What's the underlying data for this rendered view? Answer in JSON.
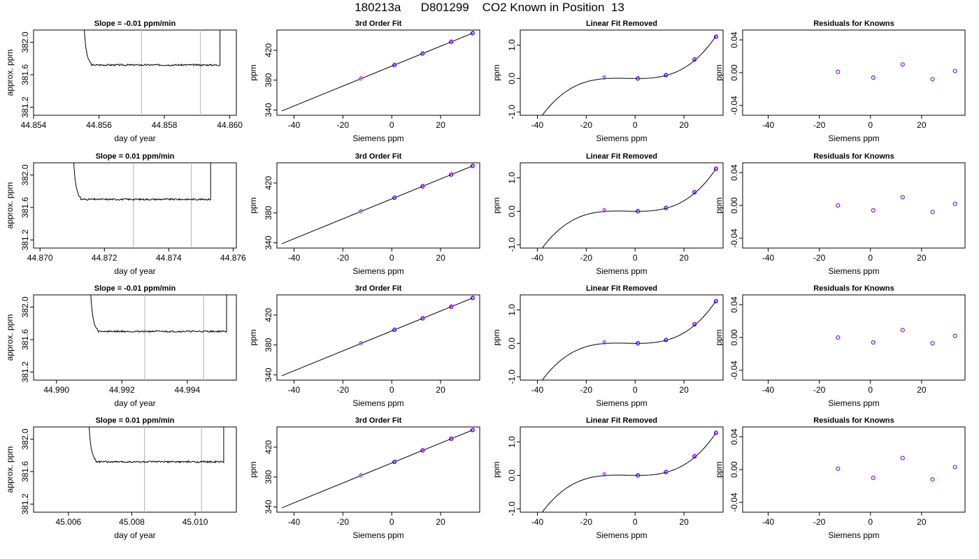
{
  "figure_title": "180213a      D801299    CO2 Known in Position  13",
  "colors": {
    "axis": "#000000",
    "trace": "#000000",
    "window_lines": "#bdbdbd",
    "point_outer": "#0000ff",
    "point_inner": "#ff00ff",
    "point_highlight": "#5aa0ff",
    "residual_point": "#8a2be2"
  },
  "chart_data": [
    {
      "type": "line",
      "row": 1,
      "panel": "time-trace",
      "title": "Slope =  -0.01  ppm/min",
      "xlabel": "day of year",
      "ylabel": "approx. ppm",
      "xlim": [
        44.854,
        44.8602
      ],
      "ylim": [
        381.1,
        382.15
      ],
      "xticks": [
        44.854,
        44.856,
        44.858,
        44.86
      ],
      "xtick_labels": [
        "44.854",
        "44.856",
        "44.858",
        "44.860"
      ],
      "yticks": [
        381.2,
        381.6,
        382.0
      ],
      "ytick_labels": [
        "381.2",
        "381.6",
        "382.0"
      ],
      "window_lines": [
        44.8573,
        44.8591
      ],
      "trace": {
        "start": 44.8555,
        "end": 44.8597,
        "plateau": 381.72,
        "noise": 0.01
      }
    },
    {
      "type": "scatter",
      "row": 1,
      "panel": "3rd-order-fit",
      "title": "3rd Order Fit",
      "xlabel": "Siemens ppm",
      "ylabel": "ppm",
      "xlim": [
        -47,
        36
      ],
      "ylim": [
        333,
        447
      ],
      "xticks": [
        -40,
        -20,
        0,
        20
      ],
      "xtick_labels": [
        "-40",
        "-20",
        "0",
        "20"
      ],
      "yticks": [
        340,
        380,
        420
      ],
      "ytick_labels": [
        "340",
        "380",
        "420"
      ],
      "fit_line": {
        "x": [
          -45,
          33
        ],
        "y": [
          338.8,
          442.7
        ]
      },
      "points": {
        "x": [
          -12.7,
          1.1,
          12.6,
          24.3,
          33.1
        ],
        "y": [
          381.8,
          400.2,
          415.5,
          431.1,
          442.8
        ]
      },
      "highlight_index": 0
    },
    {
      "type": "scatter",
      "row": 1,
      "panel": "linear-fit-removed",
      "title": "Linear Fit Removed",
      "xlabel": "Siemens ppm",
      "ylabel": "ppm",
      "xlim": [
        -47,
        36
      ],
      "ylim": [
        -1.1,
        1.45
      ],
      "xticks": [
        -40,
        -20,
        0,
        20
      ],
      "xtick_labels": [
        "-40",
        "-20",
        "0",
        "20"
      ],
      "yticks": [
        -1.0,
        0.0,
        1.0
      ],
      "ytick_labels": [
        "-1.0",
        "0.0",
        "1.0"
      ],
      "curve": {
        "x0": -45,
        "x1": 33
      },
      "points": {
        "x": [
          -12.7,
          1.1,
          12.6,
          24.3,
          33.1
        ],
        "y": [
          0.02,
          0.0,
          0.1,
          0.57,
          1.25
        ]
      },
      "highlight_index": 0
    },
    {
      "type": "scatter",
      "row": 1,
      "panel": "residuals",
      "title": "Residuals for Knowns",
      "xlabel": "Siemens ppm",
      "ylabel": "ppm",
      "xlim": [
        -50,
        37
      ],
      "ylim": [
        -0.052,
        0.052
      ],
      "xticks": [
        -40,
        -20,
        0,
        20
      ],
      "xtick_labels": [
        "-40",
        "-20",
        "0",
        "20"
      ],
      "yticks": [
        -0.04,
        0.0,
        0.04
      ],
      "ytick_labels": [
        "-0.04",
        "0.00",
        "0.04"
      ],
      "points": {
        "x": [
          -12.7,
          1.1,
          12.6,
          24.3,
          33.1
        ],
        "y": [
          0.001,
          -0.006,
          0.01,
          -0.008,
          0.002
        ]
      }
    },
    {
      "type": "line",
      "row": 2,
      "panel": "time-trace",
      "title": "Slope =  0.01  ppm/min",
      "xlabel": "day of year",
      "ylabel": "approx. ppm",
      "xlim": [
        44.8698,
        44.8761
      ],
      "ylim": [
        381.1,
        382.15
      ],
      "xticks": [
        44.87,
        44.872,
        44.874,
        44.876
      ],
      "xtick_labels": [
        "44.870",
        "44.872",
        "44.874",
        "44.876"
      ],
      "yticks": [
        381.2,
        381.6,
        382.0
      ],
      "ytick_labels": [
        "381.2",
        "381.6",
        "382.0"
      ],
      "window_lines": [
        44.8729,
        44.8747
      ],
      "trace": {
        "start": 44.871,
        "end": 44.8753,
        "plateau": 381.7,
        "noise": 0.01
      }
    },
    {
      "type": "scatter",
      "row": 2,
      "panel": "3rd-order-fit",
      "title": "3rd Order Fit",
      "xlabel": "Siemens ppm",
      "ylabel": "ppm",
      "xlim": [
        -47,
        36
      ],
      "ylim": [
        333,
        447
      ],
      "xticks": [
        -40,
        -20,
        0,
        20
      ],
      "xtick_labels": [
        "-40",
        "-20",
        "0",
        "20"
      ],
      "yticks": [
        340,
        380,
        420
      ],
      "ytick_labels": [
        "340",
        "380",
        "420"
      ],
      "fit_line": {
        "x": [
          -45,
          33
        ],
        "y": [
          338.8,
          442.7
        ]
      },
      "points": {
        "x": [
          -12.7,
          1.1,
          12.6,
          24.3,
          33.1
        ],
        "y": [
          381.8,
          400.2,
          415.5,
          431.1,
          442.8
        ]
      },
      "highlight_index": 0
    },
    {
      "type": "scatter",
      "row": 2,
      "panel": "linear-fit-removed",
      "title": "Linear Fit Removed",
      "xlabel": "Siemens ppm",
      "ylabel": "ppm",
      "xlim": [
        -47,
        36
      ],
      "ylim": [
        -1.1,
        1.45
      ],
      "xticks": [
        -40,
        -20,
        0,
        20
      ],
      "xtick_labels": [
        "-40",
        "-20",
        "0",
        "20"
      ],
      "yticks": [
        -1.0,
        0.0,
        1.0
      ],
      "ytick_labels": [
        "-1.0",
        "0.0",
        "1.0"
      ],
      "curve": {
        "x0": -45,
        "x1": 33
      },
      "points": {
        "x": [
          -12.7,
          1.1,
          12.6,
          24.3,
          33.1
        ],
        "y": [
          0.02,
          0.0,
          0.1,
          0.57,
          1.27
        ]
      },
      "highlight_index": 0
    },
    {
      "type": "scatter",
      "row": 2,
      "panel": "residuals",
      "title": "Residuals for Knowns",
      "xlabel": "Siemens ppm",
      "ylabel": "ppm",
      "xlim": [
        -50,
        37
      ],
      "ylim": [
        -0.052,
        0.052
      ],
      "xticks": [
        -40,
        -20,
        0,
        20
      ],
      "xtick_labels": [
        "-40",
        "-20",
        "0",
        "20"
      ],
      "yticks": [
        -0.04,
        0.0,
        0.04
      ],
      "ytick_labels": [
        "-0.04",
        "0.00",
        "0.04"
      ],
      "points": {
        "x": [
          -12.7,
          1.1,
          12.6,
          24.3,
          33.1
        ],
        "y": [
          0.0,
          -0.006,
          0.01,
          -0.008,
          0.002
        ]
      }
    },
    {
      "type": "line",
      "row": 3,
      "panel": "time-trace",
      "title": "Slope =  -0.01  ppm/min",
      "xlabel": "day of year",
      "ylabel": "approx. ppm",
      "xlim": [
        44.9893,
        44.9955
      ],
      "ylim": [
        381.1,
        382.15
      ],
      "xticks": [
        44.99,
        44.992,
        44.994
      ],
      "xtick_labels": [
        "44.990",
        "44.992",
        "44.994"
      ],
      "yticks": [
        381.2,
        381.6,
        382.0
      ],
      "ytick_labels": [
        "381.2",
        "381.6",
        "382.0"
      ],
      "window_lines": [
        44.9927,
        44.9945
      ],
      "trace": {
        "start": 44.991,
        "end": 44.9952,
        "plateau": 381.7,
        "noise": 0.01
      }
    },
    {
      "type": "scatter",
      "row": 3,
      "panel": "3rd-order-fit",
      "title": "3rd Order Fit",
      "xlabel": "Siemens ppm",
      "ylabel": "ppm",
      "xlim": [
        -47,
        36
      ],
      "ylim": [
        333,
        447
      ],
      "xticks": [
        -40,
        -20,
        0,
        20
      ],
      "xtick_labels": [
        "-40",
        "-20",
        "0",
        "20"
      ],
      "yticks": [
        340,
        380,
        420
      ],
      "ytick_labels": [
        "340",
        "380",
        "420"
      ],
      "fit_line": {
        "x": [
          -45,
          33
        ],
        "y": [
          338.8,
          442.7
        ]
      },
      "points": {
        "x": [
          -12.7,
          1.1,
          12.6,
          24.3,
          33.1
        ],
        "y": [
          381.8,
          400.2,
          415.5,
          431.1,
          442.8
        ]
      },
      "highlight_index": 0
    },
    {
      "type": "scatter",
      "row": 3,
      "panel": "linear-fit-removed",
      "title": "Linear Fit Removed",
      "xlabel": "Siemens ppm",
      "ylabel": "ppm",
      "xlim": [
        -47,
        36
      ],
      "ylim": [
        -1.1,
        1.45
      ],
      "xticks": [
        -40,
        -20,
        0,
        20
      ],
      "xtick_labels": [
        "-40",
        "-20",
        "0",
        "20"
      ],
      "yticks": [
        -1.0,
        0.0,
        1.0
      ],
      "ytick_labels": [
        "-1.0",
        "0.0",
        "1.0"
      ],
      "curve": {
        "x0": -45,
        "x1": 33
      },
      "points": {
        "x": [
          -12.7,
          1.1,
          12.6,
          24.3,
          33.1
        ],
        "y": [
          0.02,
          0.0,
          0.1,
          0.57,
          1.26
        ]
      },
      "highlight_index": 0
    },
    {
      "type": "scatter",
      "row": 3,
      "panel": "residuals",
      "title": "Residuals for Knowns",
      "xlabel": "Siemens ppm",
      "ylabel": "ppm",
      "xlim": [
        -50,
        37
      ],
      "ylim": [
        -0.052,
        0.052
      ],
      "xticks": [
        -40,
        -20,
        0,
        20
      ],
      "xtick_labels": [
        "-40",
        "-20",
        "0",
        "20"
      ],
      "yticks": [
        -0.04,
        0.0,
        0.04
      ],
      "ytick_labels": [
        "-0.04",
        "0.00",
        "0.04"
      ],
      "points": {
        "x": [
          -12.7,
          1.1,
          12.6,
          24.3,
          33.1
        ],
        "y": [
          0.0,
          -0.006,
          0.009,
          -0.007,
          0.002
        ]
      }
    },
    {
      "type": "line",
      "row": 4,
      "panel": "time-trace",
      "title": "Slope =  0.01  ppm/min",
      "xlabel": "day of year",
      "ylabel": "approx. ppm",
      "xlim": [
        45.0049,
        45.0113
      ],
      "ylim": [
        381.1,
        382.15
      ],
      "xticks": [
        45.006,
        45.008,
        45.01
      ],
      "xtick_labels": [
        "45.006",
        "45.008",
        "45.010"
      ],
      "yticks": [
        381.2,
        381.6,
        382.0
      ],
      "ytick_labels": [
        "381.2",
        "381.6",
        "382.0"
      ],
      "window_lines": [
        45.0084,
        45.0102
      ],
      "trace": {
        "start": 45.0066,
        "end": 45.0109,
        "plateau": 381.72,
        "noise": 0.01
      }
    },
    {
      "type": "scatter",
      "row": 4,
      "panel": "3rd-order-fit",
      "title": "3rd Order Fit",
      "xlabel": "Siemens ppm",
      "ylabel": "ppm",
      "xlim": [
        -47,
        36
      ],
      "ylim": [
        333,
        447
      ],
      "xticks": [
        -40,
        -20,
        0,
        20
      ],
      "xtick_labels": [
        "-40",
        "-20",
        "0",
        "20"
      ],
      "yticks": [
        340,
        380,
        420
      ],
      "ytick_labels": [
        "340",
        "380",
        "420"
      ],
      "fit_line": {
        "x": [
          -45,
          33
        ],
        "y": [
          338.8,
          442.7
        ]
      },
      "points": {
        "x": [
          -12.7,
          1.1,
          12.6,
          24.3,
          33.1
        ],
        "y": [
          381.8,
          400.2,
          415.5,
          431.1,
          442.8
        ]
      },
      "highlight_index": 0
    },
    {
      "type": "scatter",
      "row": 4,
      "panel": "linear-fit-removed",
      "title": "Linear Fit Removed",
      "xlabel": "Siemens ppm",
      "ylabel": "ppm",
      "xlim": [
        -47,
        36
      ],
      "ylim": [
        -1.1,
        1.45
      ],
      "xticks": [
        -40,
        -20,
        0,
        20
      ],
      "xtick_labels": [
        "-40",
        "-20",
        "0",
        "20"
      ],
      "yticks": [
        -1.0,
        0.0,
        1.0
      ],
      "ytick_labels": [
        "-1.0",
        "0.0",
        "1.0"
      ],
      "curve": {
        "x0": -45,
        "x1": 33
      },
      "points": {
        "x": [
          -12.7,
          1.1,
          12.6,
          24.3,
          33.1
        ],
        "y": [
          0.02,
          0.0,
          0.1,
          0.57,
          1.27
        ]
      },
      "highlight_index": 0
    },
    {
      "type": "scatter",
      "row": 4,
      "panel": "residuals",
      "title": "Residuals for Knowns",
      "xlabel": "Siemens ppm",
      "ylabel": "ppm",
      "xlim": [
        -50,
        37
      ],
      "ylim": [
        -0.052,
        0.052
      ],
      "xticks": [
        -40,
        -20,
        0,
        20
      ],
      "xtick_labels": [
        "-40",
        "-20",
        "0",
        "20"
      ],
      "yticks": [
        -0.04,
        0.0,
        0.04
      ],
      "ytick_labels": [
        "-0.04",
        "0.00",
        "0.04"
      ],
      "points": {
        "x": [
          -12.7,
          1.1,
          12.6,
          24.3,
          33.1
        ],
        "y": [
          0.001,
          -0.01,
          0.014,
          -0.012,
          0.003
        ]
      }
    }
  ]
}
